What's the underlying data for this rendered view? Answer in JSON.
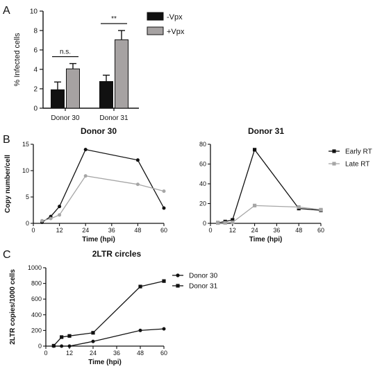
{
  "chart_data": [
    {
      "panel": "A",
      "type": "bar",
      "categories": [
        "Donor 30",
        "Donor 31"
      ],
      "ylabel": "% Infected cells",
      "ylim": [
        0,
        10
      ],
      "yticks": [
        "0",
        "2",
        "4",
        "6",
        "8",
        "10"
      ],
      "series": [
        {
          "name": "-Vpx",
          "values": [
            1.9,
            2.75
          ],
          "errors": [
            0.8,
            0.65
          ],
          "color": "#111111"
        },
        {
          "name": "+Vpx",
          "values": [
            4.05,
            7.05
          ],
          "errors": [
            0.55,
            0.95
          ],
          "color": "#a6a2a2"
        }
      ],
      "significance": [
        "n.s.",
        "**"
      ],
      "legend": "top-right"
    },
    {
      "panel": "B",
      "type": "line",
      "title": "Donor 30",
      "xlabel": "Time (hpi)",
      "ylabel": "Copy number/cell",
      "xlim": [
        0,
        60
      ],
      "ylim": [
        0,
        15
      ],
      "xticks": [
        "0",
        "12",
        "24",
        "36",
        "48",
        "60"
      ],
      "yticks": [
        "0",
        "5",
        "10",
        "15"
      ],
      "series": [
        {
          "name": "Early RT",
          "x": [
            4,
            8,
            12,
            24,
            48,
            60
          ],
          "values": [
            0.2,
            1.3,
            3.2,
            14.0,
            12.0,
            2.9
          ],
          "color": "#111111",
          "marker": "circle"
        },
        {
          "name": "Late RT",
          "x": [
            4,
            8,
            12,
            24,
            48,
            60
          ],
          "values": [
            0.5,
            0.9,
            1.6,
            9.0,
            7.4,
            6.1
          ],
          "color": "#a6a6a6",
          "marker": "circle"
        }
      ]
    },
    {
      "panel": "B",
      "type": "line",
      "title": "Donor 31",
      "xlabel": "Time (hpi)",
      "ylabel": "",
      "xlim": [
        0,
        60
      ],
      "ylim": [
        0,
        80
      ],
      "xticks": [
        "0",
        "12",
        "24",
        "36",
        "48",
        "60"
      ],
      "yticks": [
        "0",
        "20",
        "40",
        "60",
        "80"
      ],
      "series": [
        {
          "name": "Early RT",
          "x": [
            4,
            8,
            12,
            24,
            48,
            60
          ],
          "values": [
            0.5,
            1.8,
            3.5,
            74.5,
            15.0,
            13.2
          ],
          "color": "#111111",
          "marker": "square"
        },
        {
          "name": "Late RT",
          "x": [
            4,
            8,
            12,
            24,
            48,
            60
          ],
          "values": [
            0.3,
            0.5,
            1.0,
            18.0,
            16.5,
            13.8
          ],
          "color": "#a6a6a6",
          "marker": "square"
        }
      ],
      "legend": "right"
    },
    {
      "panel": "C",
      "type": "line",
      "title": "2LTR circles",
      "xlabel": "Time (hpi)",
      "ylabel": "2LTR copies/1000 cells",
      "xlim": [
        0,
        60
      ],
      "ylim": [
        0,
        1000
      ],
      "xticks": [
        "0",
        "12",
        "24",
        "36",
        "48",
        "60"
      ],
      "yticks": [
        "0",
        "200",
        "400",
        "600",
        "800",
        "1000"
      ],
      "series": [
        {
          "name": "Donor 30",
          "x": [
            4,
            8,
            12,
            24,
            48,
            60
          ],
          "values": [
            0,
            0,
            0,
            60,
            200,
            220
          ],
          "color": "#111111",
          "marker": "circle"
        },
        {
          "name": "Donor 31",
          "x": [
            4,
            8,
            12,
            24,
            48,
            60
          ],
          "values": [
            5,
            115,
            130,
            170,
            760,
            830
          ],
          "color": "#111111",
          "marker": "square"
        }
      ],
      "legend": "right"
    }
  ],
  "panel_letters": [
    "A",
    "B",
    "C"
  ]
}
